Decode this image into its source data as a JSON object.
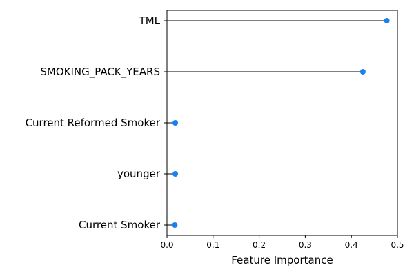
{
  "chart_data": {
    "type": "lollipop",
    "orientation": "horizontal",
    "title": "",
    "xlabel": "Feature Importance",
    "ylabel": "",
    "xlim": [
      0,
      0.5
    ],
    "x_ticks": [
      0.0,
      0.1,
      0.2,
      0.3,
      0.4,
      0.5
    ],
    "x_tick_labels": [
      "0.0",
      "0.1",
      "0.2",
      "0.3",
      "0.4",
      "0.5"
    ],
    "categories": [
      "TML",
      "SMOKING_PACK_YEARS",
      "Current Reformed Smoker",
      "younger",
      "Current Smoker"
    ],
    "values": [
      0.477,
      0.425,
      0.018,
      0.018,
      0.017
    ],
    "grid": false,
    "legend": "none",
    "marker_color": "#1a80f0",
    "stem_color": "#000000"
  }
}
